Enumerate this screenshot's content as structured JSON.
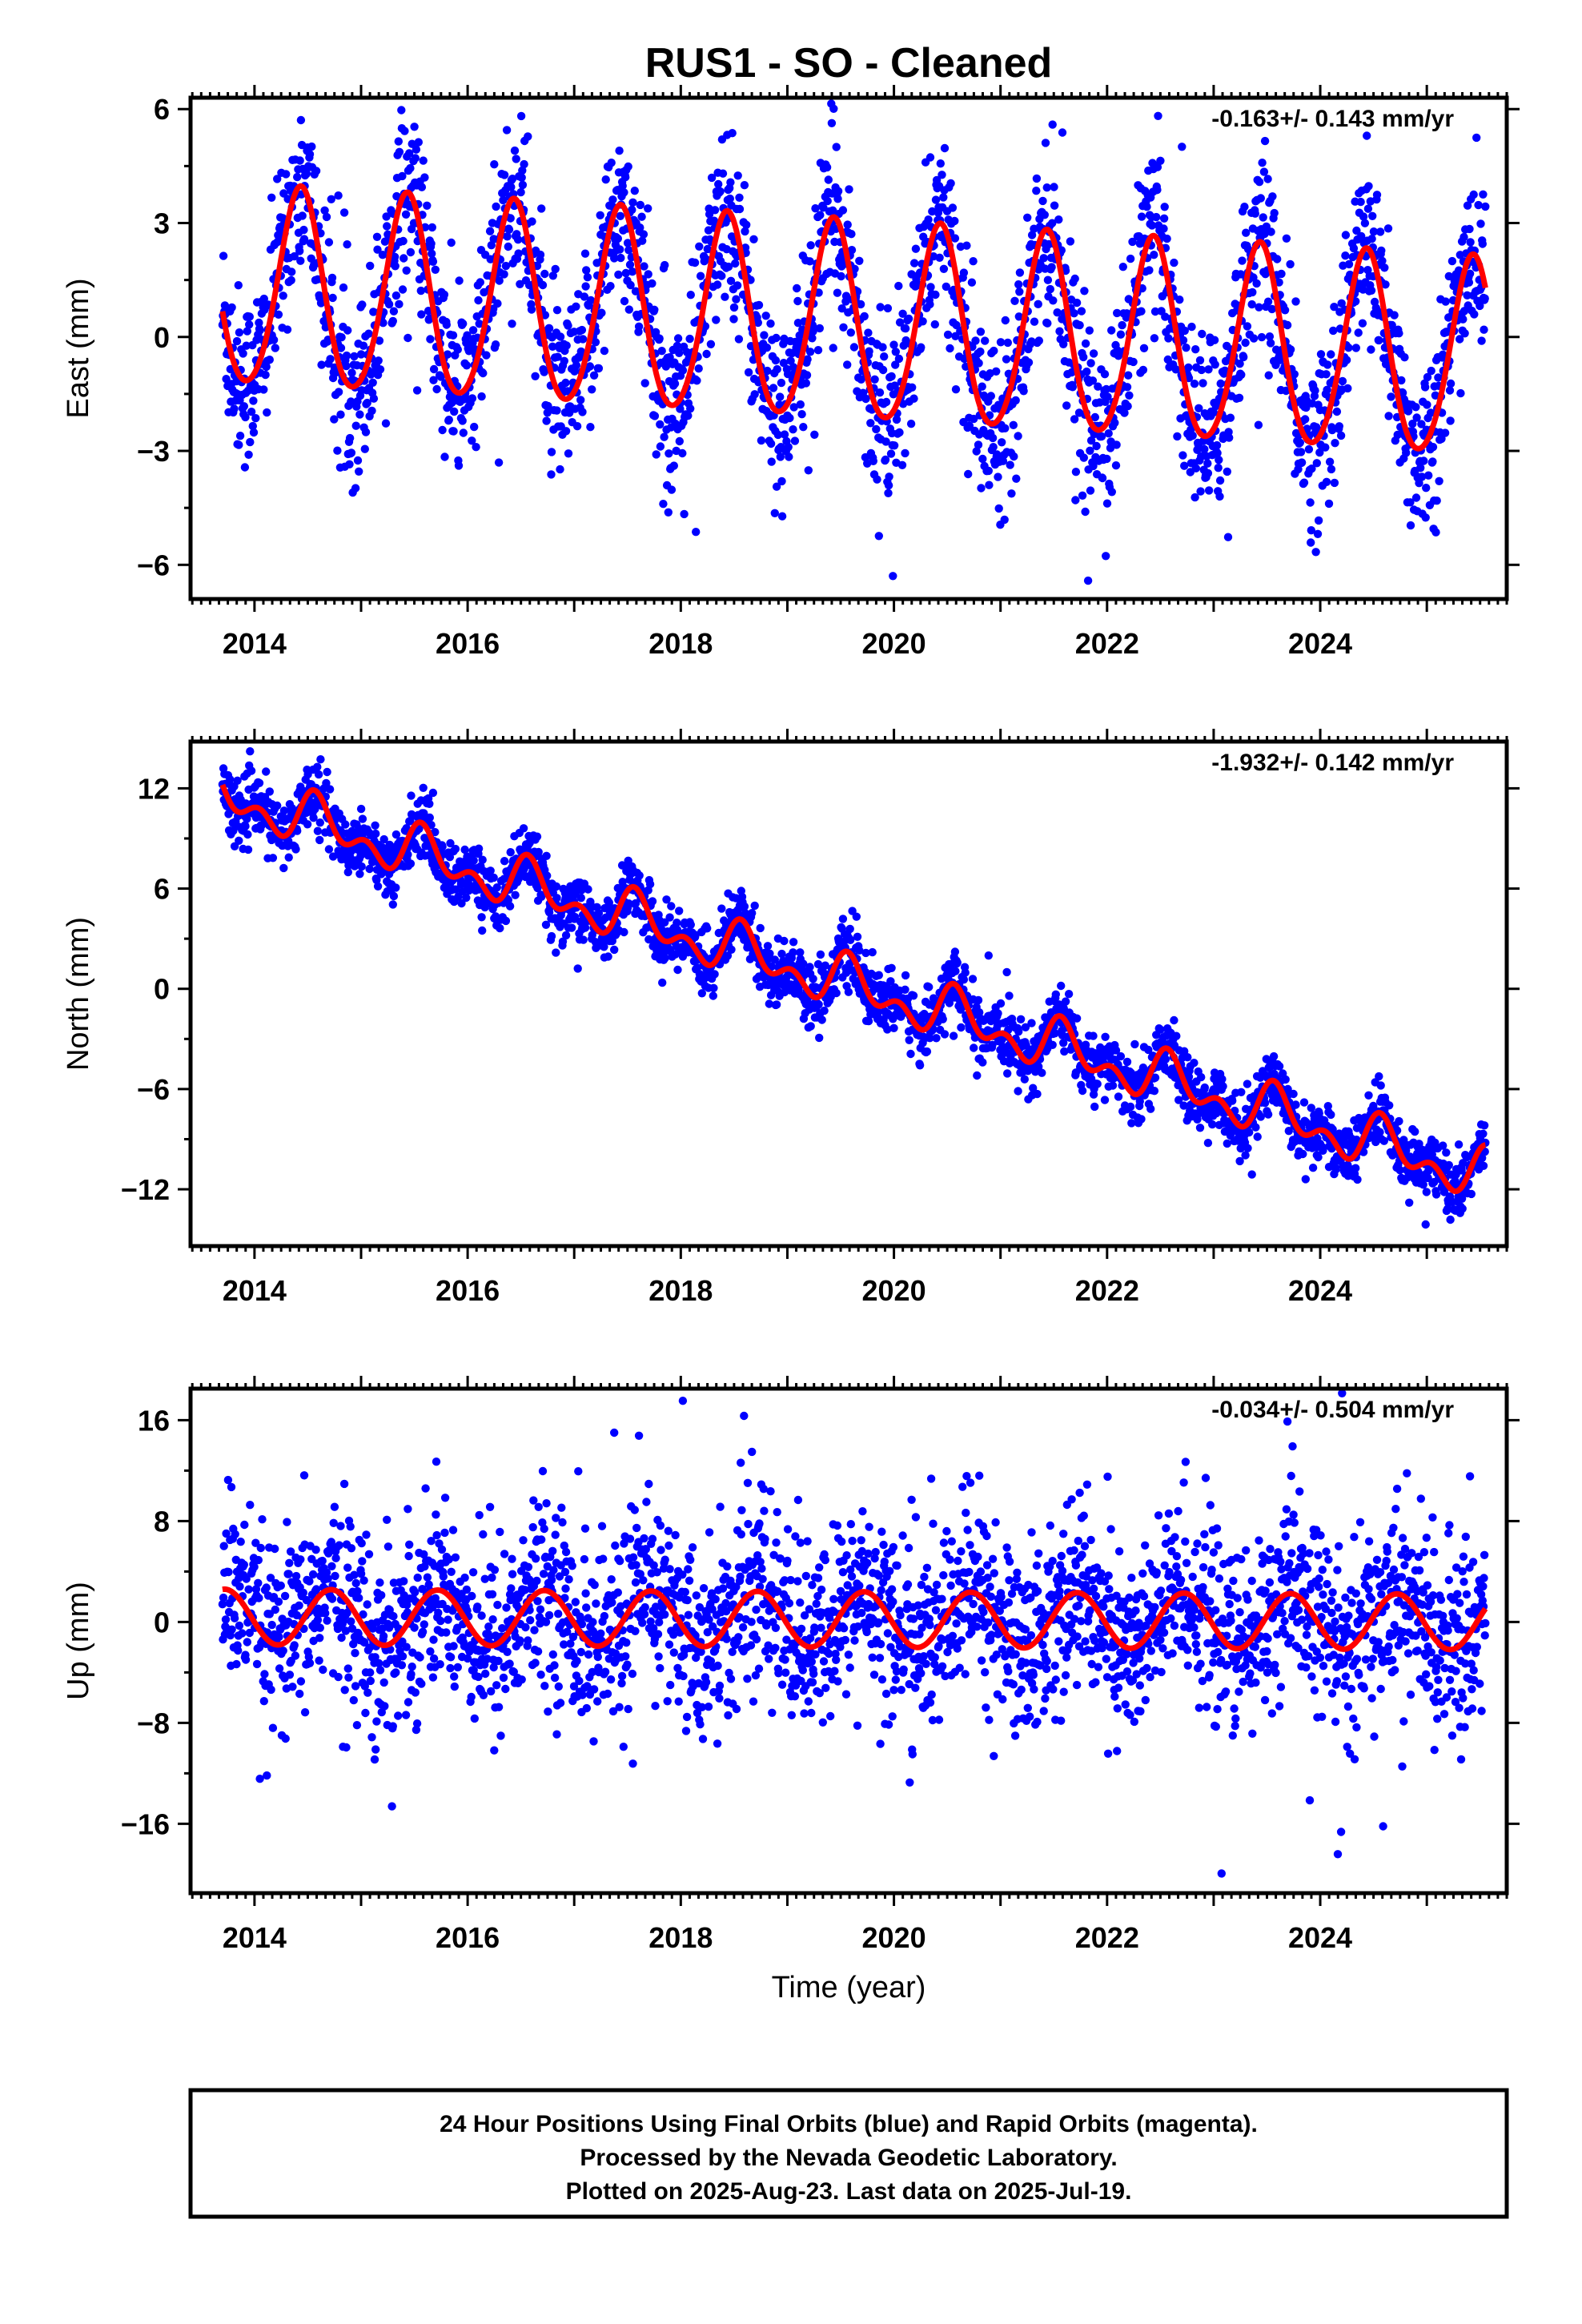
{
  "title": "RUS1  - SO - Cleaned",
  "colors": {
    "data": "#0000ff",
    "model": "#ff0000",
    "frame": "#000000"
  },
  "chart_data": [
    {
      "type": "scatter",
      "ylabel": "East (mm)",
      "xlabel": "",
      "rate_text": "-0.163+/- 0.143 mm/yr",
      "xlim": [
        2013.4,
        2025.75
      ],
      "ylim": [
        -6.9,
        6.3
      ],
      "xticks": [
        2014,
        2016,
        2018,
        2020,
        2022,
        2024
      ],
      "yticks": [
        -6,
        -3,
        0,
        3,
        6
      ],
      "x_start": 2013.7,
      "x_end": 2025.55,
      "model": {
        "offset": 1.25,
        "trend": -0.163,
        "ref_year": 2013.7,
        "annual_amp": 2.6,
        "annual_amp_drift": 0.0,
        "annual_peak": 2013.43,
        "semi_amp": 0.25,
        "semi_peak": 2013.45
      },
      "scatter_sigma": 1.15,
      "grid": false
    },
    {
      "type": "scatter",
      "ylabel": "North (mm)",
      "xlabel": "",
      "rate_text": "-1.932+/- 0.142 mm/yr",
      "xlim": [
        2013.4,
        2025.75
      ],
      "ylim": [
        -15.4,
        14.8
      ],
      "xticks": [
        2014,
        2016,
        2018,
        2020,
        2022,
        2024
      ],
      "yticks": [
        -12,
        -6,
        0,
        6,
        12
      ],
      "x_start": 2013.7,
      "x_end": 2025.55,
      "model": {
        "offset": 11.6,
        "trend": -1.932,
        "ref_year": 2013.7,
        "annual_amp": 1.1,
        "annual_amp_drift": 0.0,
        "annual_peak": 2013.6,
        "semi_amp": 0.9,
        "semi_peak": 2013.55
      },
      "scatter_sigma": 0.9,
      "grid": false
    },
    {
      "type": "scatter",
      "ylabel": "Up (mm)",
      "xlabel": "Time (year)",
      "rate_text": "-0.034+/- 0.504 mm/yr",
      "xlim": [
        2013.4,
        2025.75
      ],
      "ylim": [
        -21.5,
        18.5
      ],
      "xticks": [
        2014,
        2016,
        2018,
        2020,
        2022,
        2024
      ],
      "yticks": [
        -16,
        -8,
        0,
        8,
        16
      ],
      "x_start": 2013.7,
      "x_end": 2025.55,
      "model": {
        "offset": 0.4,
        "trend": -0.034,
        "ref_year": 2013.7,
        "annual_amp": 2.2,
        "annual_amp_drift": 0.0,
        "annual_peak": 2013.72,
        "semi_amp": 0.0,
        "semi_peak": 2013.5
      },
      "scatter_sigma": 3.6,
      "grid": false
    }
  ],
  "footer": {
    "lines": [
      "24 Hour Positions Using Final Orbits (blue) and Rapid Orbits (magenta).",
      "Processed by the Nevada Geodetic Laboratory.",
      "Plotted on 2025-Aug-23. Last data on 2025-Jul-19."
    ]
  }
}
